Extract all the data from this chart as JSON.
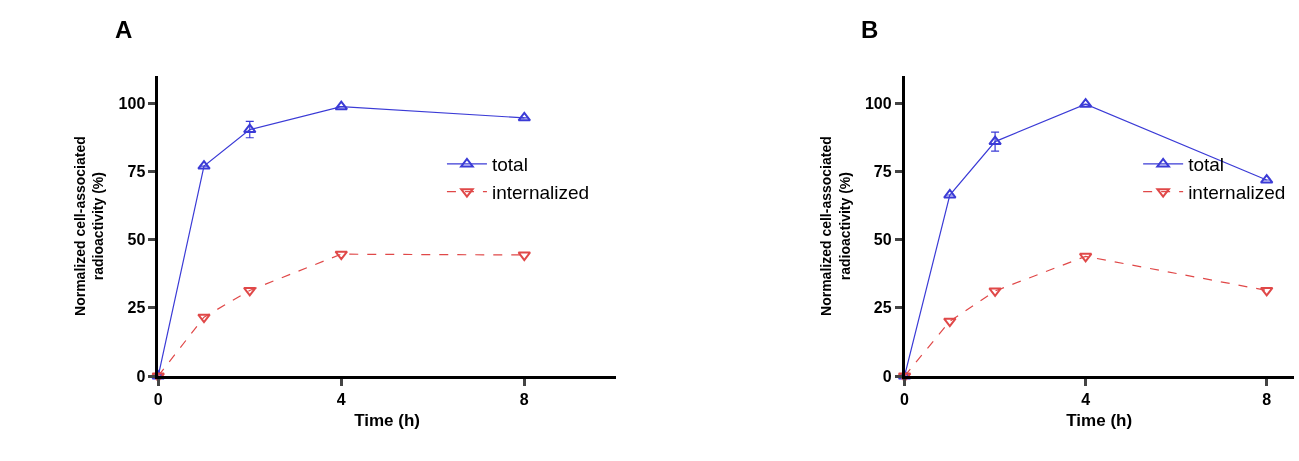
{
  "chart_data": [
    {
      "type": "line",
      "title": "A",
      "xlabel": "Time (h)",
      "ylabel": "Normalized cell-associated\nradioactivity (%)",
      "x": [
        0,
        1,
        2,
        4,
        8
      ],
      "xlim": [
        0,
        10
      ],
      "xticks": [
        0,
        4,
        8
      ],
      "ylim": [
        0,
        110
      ],
      "yticks": [
        0,
        25,
        50,
        75,
        100
      ],
      "legend": "right",
      "series": [
        {
          "name": "total",
          "color": "#3b3bd6",
          "marker": "triangle",
          "line_style": "solid",
          "values": [
            0,
            77,
            90.4,
            98.8,
            94.7
          ],
          "errors": [
            null,
            null,
            3,
            null,
            null
          ]
        },
        {
          "name": "internalized",
          "color": "#e04848",
          "marker": "triangle-down",
          "line_style": "dashed",
          "values": [
            0,
            21.6,
            31.4,
            44.7,
            44.4
          ]
        }
      ]
    },
    {
      "type": "line",
      "title": "B",
      "xlabel": "Time (h)",
      "ylabel": "Normalized cell-associated\nradioactivity (%)",
      "x": [
        0,
        1,
        2,
        4,
        8
      ],
      "xlim": [
        0,
        8.6
      ],
      "xticks": [
        0,
        4,
        8
      ],
      "ylim": [
        0,
        110
      ],
      "yticks": [
        0,
        25,
        50,
        75,
        100
      ],
      "legend": "right",
      "series": [
        {
          "name": "total",
          "color": "#3b3bd6",
          "marker": "triangle",
          "line_style": "solid",
          "values": [
            0,
            66.4,
            86,
            99.7,
            71.9
          ],
          "errors": [
            null,
            null,
            3.5,
            null,
            null
          ]
        },
        {
          "name": "internalized",
          "color": "#e04848",
          "marker": "triangle-down",
          "line_style": "dashed",
          "values": [
            0,
            20.1,
            31.2,
            43.9,
            31.4
          ]
        }
      ]
    }
  ]
}
